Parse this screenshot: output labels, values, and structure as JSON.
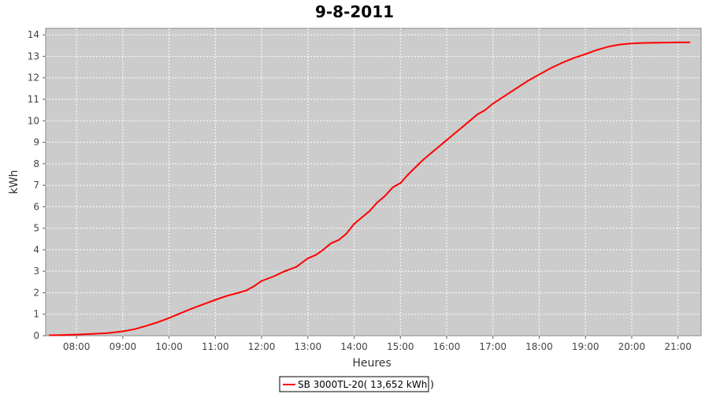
{
  "chart_data": {
    "type": "line",
    "title": "9-8-2011",
    "xlabel": "Heures",
    "ylabel": "kWh",
    "xlim": [
      "07:20",
      "21:30"
    ],
    "ylim": [
      0,
      14.3
    ],
    "x_ticks": [
      "08:00",
      "09:00",
      "10:00",
      "11:00",
      "12:00",
      "13:00",
      "14:00",
      "15:00",
      "16:00",
      "17:00",
      "18:00",
      "19:00",
      "20:00",
      "21:00"
    ],
    "y_ticks": [
      0,
      1,
      2,
      3,
      4,
      5,
      6,
      7,
      8,
      9,
      10,
      11,
      12,
      13,
      14
    ],
    "grid": true,
    "legend_position": "bottom-center",
    "colors": {
      "plot_background": "#cccccc",
      "grid": "#ffffff",
      "series": "#ff0000"
    },
    "series": [
      {
        "name": "SB 3000TL-20( 13,652 kWh  )",
        "x": [
          "07:25",
          "07:40",
          "08:00",
          "08:20",
          "08:40",
          "09:00",
          "09:15",
          "09:30",
          "09:45",
          "10:00",
          "10:15",
          "10:30",
          "10:45",
          "11:00",
          "11:15",
          "11:30",
          "11:40",
          "11:50",
          "12:00",
          "12:15",
          "12:30",
          "12:45",
          "13:00",
          "13:10",
          "13:20",
          "13:30",
          "13:40",
          "13:50",
          "14:00",
          "14:10",
          "14:20",
          "14:30",
          "14:40",
          "14:50",
          "15:00",
          "15:10",
          "15:20",
          "15:30",
          "15:40",
          "15:50",
          "16:00",
          "16:10",
          "16:20",
          "16:30",
          "16:40",
          "16:50",
          "17:00",
          "17:15",
          "17:30",
          "17:45",
          "18:00",
          "18:15",
          "18:30",
          "18:45",
          "19:00",
          "19:15",
          "19:30",
          "19:45",
          "20:00",
          "20:15",
          "20:30",
          "20:45",
          "21:00",
          "21:15"
        ],
        "y": [
          0.02,
          0.03,
          0.05,
          0.08,
          0.12,
          0.2,
          0.3,
          0.45,
          0.62,
          0.82,
          1.05,
          1.27,
          1.47,
          1.67,
          1.85,
          2.0,
          2.1,
          2.3,
          2.55,
          2.75,
          3.0,
          3.2,
          3.6,
          3.75,
          4.0,
          4.3,
          4.45,
          4.75,
          5.2,
          5.5,
          5.8,
          6.2,
          6.5,
          6.9,
          7.1,
          7.5,
          7.85,
          8.2,
          8.5,
          8.8,
          9.1,
          9.4,
          9.7,
          10.0,
          10.3,
          10.5,
          10.8,
          11.15,
          11.5,
          11.85,
          12.15,
          12.45,
          12.7,
          12.92,
          13.1,
          13.3,
          13.45,
          13.55,
          13.6,
          13.62,
          13.63,
          13.64,
          13.65,
          13.652
        ]
      }
    ]
  }
}
